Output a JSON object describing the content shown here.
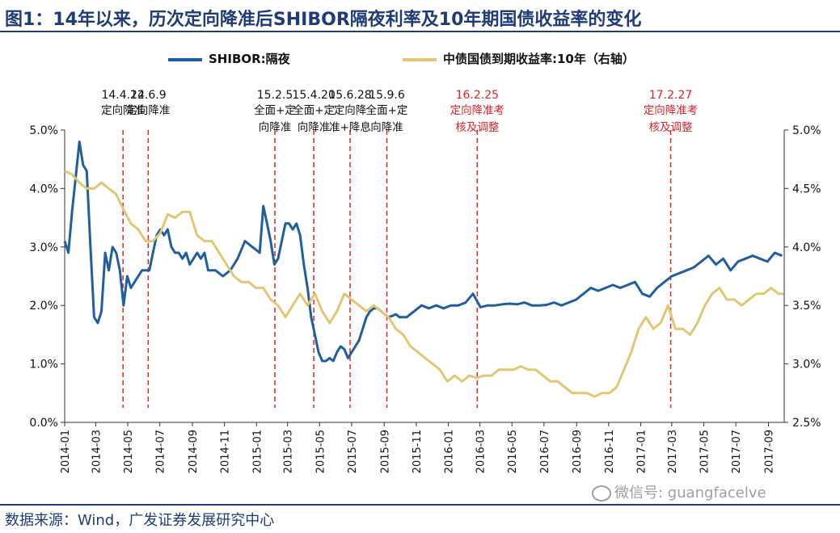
{
  "header": {
    "title": "图1：14年以来，历次定向降准后SHIBOR隔夜利率及10年期国债收益率的变化"
  },
  "footer": {
    "source": "数据来源：Wind，广发证券发展研究中心",
    "watermark": "微信号: guangfacelve"
  },
  "colors": {
    "shibor": "#1f5fa0",
    "bond": "#e0c773",
    "event_line": "#e0202a",
    "event_label_red": "#e0202a",
    "event_label_black": "#111111",
    "title": "#1f3b78"
  },
  "chart_data": {
    "type": "line",
    "title": "图1：14年以来，历次定向降准后SHIBOR隔夜利率及10年期国债收益率的变化",
    "xlabel": "",
    "ylabel": "",
    "x_ticks": [
      "2014-01",
      "2014-03",
      "2014-05",
      "2014-07",
      "2014-09",
      "2014-11",
      "2015-01",
      "2015-03",
      "2015-05",
      "2015-07",
      "2015-09",
      "2015-11",
      "2016-01",
      "2016-03",
      "2016-05",
      "2016-07",
      "2016-09",
      "2016-11",
      "2017-01",
      "2017-03",
      "2017-05",
      "2017-07",
      "2017-09"
    ],
    "xlim": [
      "2014-01-01",
      "2017-10-01"
    ],
    "y_left": {
      "lim": [
        0.0,
        5.0
      ],
      "ticks": [
        "0.0%",
        "1.0%",
        "2.0%",
        "3.0%",
        "4.0%",
        "5.0%"
      ]
    },
    "y_right": {
      "lim": [
        2.5,
        5.0
      ],
      "ticks": [
        "2.5%",
        "3.0%",
        "3.5%",
        "4.0%",
        "4.5%",
        "5.0%"
      ]
    },
    "grid": false,
    "legend_position": "top",
    "series": [
      {
        "name": "SHIBOR:隔夜",
        "axis": "left",
        "x": [
          "2014-01-01",
          "2014-01-08",
          "2014-01-15",
          "2014-01-22",
          "2014-01-29",
          "2014-02-05",
          "2014-02-12",
          "2014-02-19",
          "2014-02-26",
          "2014-03-05",
          "2014-03-12",
          "2014-03-19",
          "2014-03-26",
          "2014-04-02",
          "2014-04-09",
          "2014-04-16",
          "2014-04-23",
          "2014-04-30",
          "2014-05-07",
          "2014-05-14",
          "2014-05-21",
          "2014-05-28",
          "2014-06-04",
          "2014-06-11",
          "2014-06-18",
          "2014-06-25",
          "2014-07-02",
          "2014-07-09",
          "2014-07-16",
          "2014-07-23",
          "2014-07-30",
          "2014-08-06",
          "2014-08-13",
          "2014-08-20",
          "2014-08-27",
          "2014-09-03",
          "2014-09-10",
          "2014-09-17",
          "2014-09-24",
          "2014-10-01",
          "2014-10-15",
          "2014-10-29",
          "2014-11-12",
          "2014-11-26",
          "2014-12-10",
          "2014-12-24",
          "2015-01-07",
          "2015-01-14",
          "2015-01-21",
          "2015-01-28",
          "2015-02-04",
          "2015-02-11",
          "2015-02-18",
          "2015-02-25",
          "2015-03-04",
          "2015-03-11",
          "2015-03-18",
          "2015-03-25",
          "2015-04-01",
          "2015-04-08",
          "2015-04-15",
          "2015-04-22",
          "2015-04-29",
          "2015-05-06",
          "2015-05-13",
          "2015-05-20",
          "2015-05-27",
          "2015-06-03",
          "2015-06-10",
          "2015-06-17",
          "2015-06-24",
          "2015-07-01",
          "2015-07-08",
          "2015-07-15",
          "2015-07-22",
          "2015-07-29",
          "2015-08-05",
          "2015-08-12",
          "2015-08-19",
          "2015-08-26",
          "2015-09-02",
          "2015-09-09",
          "2015-09-16",
          "2015-09-23",
          "2015-09-30",
          "2015-10-14",
          "2015-10-28",
          "2015-11-11",
          "2015-11-25",
          "2015-12-09",
          "2015-12-23",
          "2016-01-06",
          "2016-01-20",
          "2016-02-03",
          "2016-02-17",
          "2016-03-02",
          "2016-03-16",
          "2016-03-30",
          "2016-04-13",
          "2016-04-27",
          "2016-05-11",
          "2016-05-25",
          "2016-06-08",
          "2016-06-22",
          "2016-07-06",
          "2016-07-20",
          "2016-08-03",
          "2016-08-17",
          "2016-08-31",
          "2016-09-14",
          "2016-09-28",
          "2016-10-12",
          "2016-10-26",
          "2016-11-09",
          "2016-11-23",
          "2016-12-07",
          "2016-12-21",
          "2017-01-04",
          "2017-01-18",
          "2017-02-01",
          "2017-02-15",
          "2017-03-01",
          "2017-03-15",
          "2017-03-29",
          "2017-04-12",
          "2017-04-26",
          "2017-05-10",
          "2017-05-24",
          "2017-06-07",
          "2017-06-21",
          "2017-07-05",
          "2017-07-19",
          "2017-08-02",
          "2017-08-16",
          "2017-08-30",
          "2017-09-13",
          "2017-09-27"
        ],
        "values": [
          3.1,
          2.9,
          3.6,
          4.2,
          4.8,
          4.4,
          4.3,
          3.0,
          1.8,
          1.7,
          1.9,
          2.9,
          2.6,
          3.0,
          2.9,
          2.6,
          2.0,
          2.5,
          2.3,
          2.4,
          2.5,
          2.6,
          2.6,
          2.6,
          2.9,
          3.2,
          3.3,
          3.2,
          3.3,
          3.0,
          2.9,
          2.9,
          2.8,
          2.9,
          2.7,
          2.8,
          2.9,
          2.8,
          2.9,
          2.6,
          2.6,
          2.5,
          2.6,
          2.8,
          3.1,
          3.0,
          2.9,
          3.7,
          3.4,
          3.1,
          2.7,
          2.8,
          3.1,
          3.4,
          3.4,
          3.3,
          3.4,
          3.2,
          2.7,
          2.3,
          1.8,
          1.5,
          1.2,
          1.05,
          1.05,
          1.1,
          1.05,
          1.2,
          1.3,
          1.25,
          1.1,
          1.2,
          1.3,
          1.4,
          1.6,
          1.8,
          1.9,
          1.95,
          1.95,
          1.9,
          1.85,
          1.8,
          1.82,
          1.85,
          1.8,
          1.8,
          1.9,
          2.0,
          1.95,
          2.0,
          1.95,
          2.0,
          2.0,
          2.05,
          2.2,
          1.97,
          2.0,
          2.0,
          2.02,
          2.03,
          2.02,
          2.05,
          2.0,
          2.0,
          2.01,
          2.05,
          2.0,
          2.05,
          2.1,
          2.2,
          2.3,
          2.25,
          2.3,
          2.35,
          2.3,
          2.35,
          2.4,
          2.2,
          2.15,
          2.3,
          2.4,
          2.5,
          2.55,
          2.6,
          2.65,
          2.75,
          2.85,
          2.7,
          2.8,
          2.6,
          2.75,
          2.8,
          2.85,
          2.8,
          2.75,
          2.9,
          2.85
        ]
      },
      {
        "name": "中债国债到期收益率:10年（右轴）",
        "axis": "right",
        "x": [
          "2014-01-01",
          "2014-01-15",
          "2014-01-29",
          "2014-02-12",
          "2014-02-26",
          "2014-03-12",
          "2014-03-26",
          "2014-04-09",
          "2014-04-23",
          "2014-05-07",
          "2014-05-21",
          "2014-06-04",
          "2014-06-18",
          "2014-07-02",
          "2014-07-16",
          "2014-07-30",
          "2014-08-13",
          "2014-08-27",
          "2014-09-10",
          "2014-09-24",
          "2014-10-08",
          "2014-10-22",
          "2014-11-05",
          "2014-11-19",
          "2014-12-03",
          "2014-12-17",
          "2014-12-31",
          "2015-01-14",
          "2015-01-28",
          "2015-02-11",
          "2015-02-25",
          "2015-03-11",
          "2015-03-25",
          "2015-04-08",
          "2015-04-22",
          "2015-05-06",
          "2015-05-20",
          "2015-06-03",
          "2015-06-17",
          "2015-07-01",
          "2015-07-15",
          "2015-07-29",
          "2015-08-12",
          "2015-08-26",
          "2015-09-09",
          "2015-09-23",
          "2015-10-07",
          "2015-10-21",
          "2015-11-04",
          "2015-11-18",
          "2015-12-02",
          "2015-12-16",
          "2015-12-30",
          "2016-01-13",
          "2016-01-27",
          "2016-02-10",
          "2016-02-24",
          "2016-03-09",
          "2016-03-23",
          "2016-04-06",
          "2016-04-20",
          "2016-05-04",
          "2016-05-18",
          "2016-06-01",
          "2016-06-15",
          "2016-06-29",
          "2016-07-13",
          "2016-07-27",
          "2016-08-10",
          "2016-08-24",
          "2016-09-07",
          "2016-09-21",
          "2016-10-05",
          "2016-10-19",
          "2016-11-02",
          "2016-11-16",
          "2016-11-30",
          "2016-12-14",
          "2016-12-28",
          "2017-01-11",
          "2017-01-25",
          "2017-02-08",
          "2017-02-22",
          "2017-03-08",
          "2017-03-22",
          "2017-04-05",
          "2017-04-19",
          "2017-05-03",
          "2017-05-17",
          "2017-05-31",
          "2017-06-14",
          "2017-06-28",
          "2017-07-12",
          "2017-07-26",
          "2017-08-09",
          "2017-08-23",
          "2017-09-06",
          "2017-09-20",
          "2017-09-30"
        ],
        "values": [
          4.65,
          4.62,
          4.55,
          4.5,
          4.5,
          4.55,
          4.5,
          4.45,
          4.32,
          4.2,
          4.15,
          4.05,
          4.05,
          4.12,
          4.28,
          4.25,
          4.3,
          4.3,
          4.1,
          4.05,
          4.05,
          3.95,
          3.85,
          3.75,
          3.7,
          3.7,
          3.65,
          3.65,
          3.55,
          3.5,
          3.4,
          3.5,
          3.6,
          3.5,
          3.6,
          3.45,
          3.35,
          3.45,
          3.6,
          3.55,
          3.5,
          3.45,
          3.5,
          3.45,
          3.4,
          3.3,
          3.25,
          3.15,
          3.1,
          3.05,
          3.0,
          2.95,
          2.85,
          2.9,
          2.85,
          2.9,
          2.88,
          2.9,
          2.9,
          2.95,
          2.95,
          2.95,
          2.98,
          2.95,
          2.95,
          2.9,
          2.85,
          2.85,
          2.8,
          2.75,
          2.75,
          2.75,
          2.72,
          2.75,
          2.75,
          2.8,
          2.95,
          3.1,
          3.3,
          3.4,
          3.3,
          3.35,
          3.5,
          3.3,
          3.3,
          3.25,
          3.35,
          3.5,
          3.6,
          3.65,
          3.55,
          3.55,
          3.5,
          3.55,
          3.6,
          3.6,
          3.65,
          3.6,
          3.6
        ]
      }
    ],
    "events": [
      {
        "date": "2014-04-22",
        "date_label": "14.4.22",
        "desc": [
          "定向降准"
        ],
        "color": "black"
      },
      {
        "date": "2014-06-09",
        "date_label": "14.6.9",
        "desc": [
          "定向降准"
        ],
        "color": "black"
      },
      {
        "date": "2015-02-05",
        "date_label": "15.2.5",
        "desc": [
          "全面+定",
          "向降准"
        ],
        "color": "black"
      },
      {
        "date": "2015-04-20",
        "date_label": "15.4.20",
        "desc": [
          "全面+定",
          "向降准"
        ],
        "color": "black"
      },
      {
        "date": "2015-06-28",
        "date_label": "15.6.28",
        "desc": [
          "定向降",
          "准+降息"
        ],
        "color": "black"
      },
      {
        "date": "2015-09-06",
        "date_label": "15.9.6",
        "desc": [
          "全面+定",
          "向降准"
        ],
        "color": "black"
      },
      {
        "date": "2016-02-25",
        "date_label": "16.2.25",
        "desc": [
          "定向降准考",
          "核及调整"
        ],
        "color": "red"
      },
      {
        "date": "2017-02-27",
        "date_label": "17.2.27",
        "desc": [
          "定向降准考",
          "核及调整"
        ],
        "color": "red"
      }
    ]
  }
}
